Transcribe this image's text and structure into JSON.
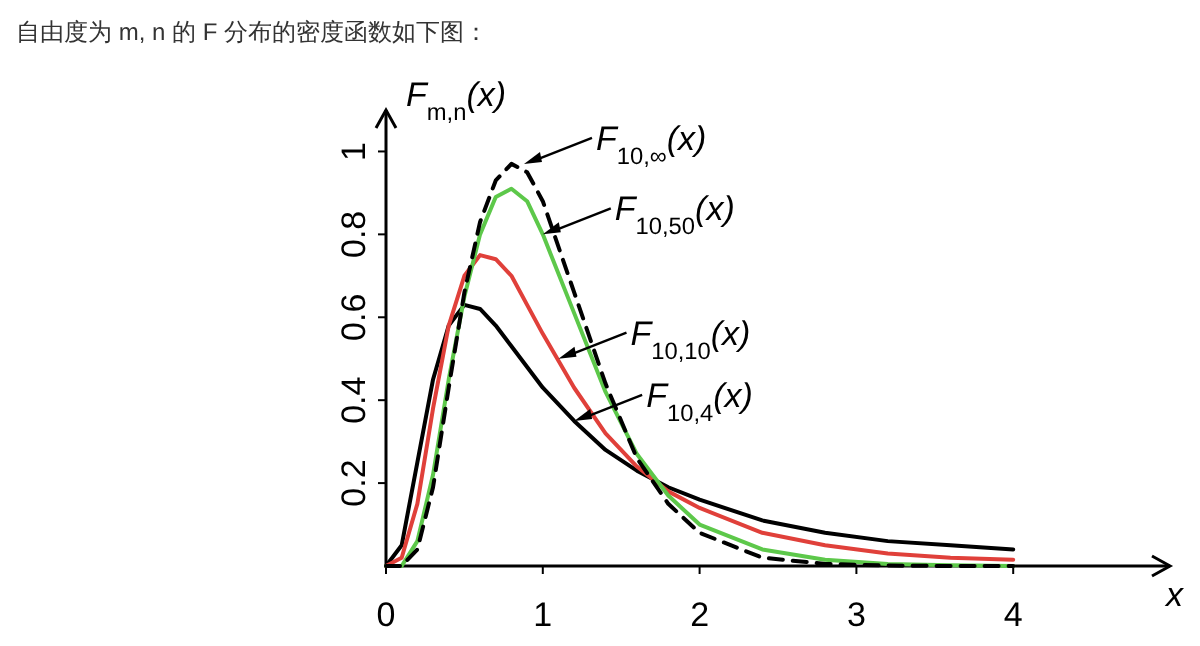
{
  "chart_data": {
    "type": "line",
    "title": "自由度为 m, n 的 F 分布的密度函数如下图：",
    "ylabel": "F$_{m,n}$(x)",
    "xlabel": "x",
    "x": [
      0,
      0.1,
      0.2,
      0.3,
      0.4,
      0.5,
      0.6,
      0.7,
      0.8,
      0.9,
      1.0,
      1.2,
      1.4,
      1.6,
      1.8,
      2.0,
      2.4,
      2.8,
      3.2,
      3.6,
      4.0
    ],
    "series": [
      {
        "color": "#000000",
        "line_style": "solid",
        "values": [
          0,
          0.05,
          0.25,
          0.45,
          0.58,
          0.63,
          0.62,
          0.58,
          0.53,
          0.48,
          0.43,
          0.35,
          0.28,
          0.23,
          0.19,
          0.16,
          0.11,
          0.08,
          0.06,
          0.05,
          0.04
        ]
      },
      {
        "color": "#e0403a",
        "line_style": "solid",
        "values": [
          0,
          0.02,
          0.15,
          0.38,
          0.58,
          0.7,
          0.75,
          0.74,
          0.7,
          0.63,
          0.56,
          0.43,
          0.32,
          0.24,
          0.18,
          0.14,
          0.08,
          0.05,
          0.03,
          0.02,
          0.015
        ]
      },
      {
        "color": "#5dc84a",
        "line_style": "solid",
        "values": [
          0,
          0,
          0.06,
          0.22,
          0.45,
          0.65,
          0.8,
          0.89,
          0.91,
          0.88,
          0.8,
          0.61,
          0.42,
          0.27,
          0.17,
          0.1,
          0.04,
          0.015,
          0.005,
          0.002,
          0
        ]
      },
      {
        "color": "#000000",
        "line_style": "dashed",
        "values": [
          0,
          0,
          0.04,
          0.19,
          0.43,
          0.66,
          0.83,
          0.93,
          0.97,
          0.95,
          0.88,
          0.66,
          0.44,
          0.26,
          0.15,
          0.08,
          0.02,
          0.005,
          0.001,
          0,
          0
        ]
      }
    ],
    "annotations": [
      {
        "text": "F$_{10,∞}$(x)",
        "x": 0.88,
        "y": 0.97
      },
      {
        "text": "F$_{10,50}$(x)",
        "x": 1.0,
        "y": 0.8
      },
      {
        "text": "F$_{10,10}$(x)",
        "x": 1.1,
        "y": 0.5
      },
      {
        "text": "F$_{10,4}$(x)",
        "x": 1.2,
        "y": 0.35
      }
    ],
    "xlim": [
      0,
      5
    ],
    "ylim": [
      0,
      1.1
    ],
    "xticks": [
      0,
      1,
      2,
      3,
      4
    ],
    "yticks": [
      0.2,
      0.4,
      0.6,
      0.8,
      1
    ],
    "grid": false
  }
}
